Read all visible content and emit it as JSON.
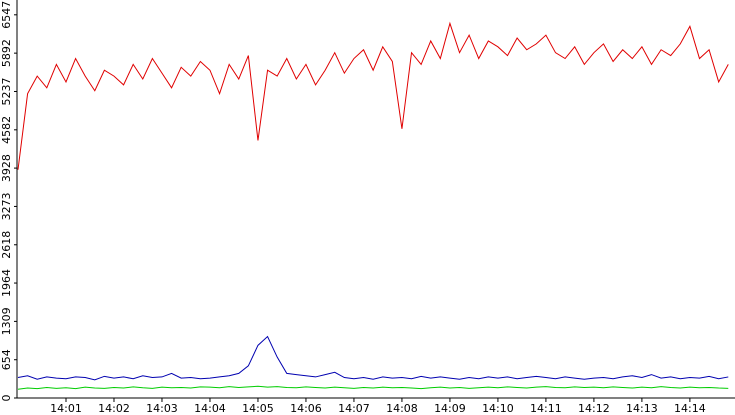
{
  "chart_data": {
    "type": "line",
    "x": [
      840,
      840.2,
      840.4,
      840.6,
      840.8,
      841,
      841.2,
      841.4,
      841.6,
      841.8,
      842,
      842.2,
      842.4,
      842.6,
      842.8,
      843,
      843.2,
      843.4,
      843.6,
      843.8,
      844,
      844.2,
      844.4,
      844.6,
      844.8,
      845,
      845.2,
      845.4,
      845.6,
      845.8,
      846,
      846.2,
      846.4,
      846.6,
      846.8,
      847,
      847.2,
      847.4,
      847.6,
      847.8,
      848,
      848.2,
      848.4,
      848.6,
      848.8,
      849,
      849.2,
      849.4,
      849.6,
      849.8,
      850,
      850.2,
      850.4,
      850.6,
      850.8,
      851,
      851.2,
      851.4,
      851.6,
      851.8,
      852,
      852.2,
      852.4,
      852.6,
      852.8,
      853,
      853.2,
      853.4,
      853.6,
      853.8,
      854,
      854.2,
      854.4,
      854.6,
      854.8
    ],
    "series": [
      {
        "color": "#e00000",
        "values": [
          3900,
          5200,
          5500,
          5300,
          5700,
          5400,
          5800,
          5500,
          5250,
          5600,
          5500,
          5350,
          5700,
          5450,
          5800,
          5550,
          5300,
          5650,
          5500,
          5750,
          5600,
          5200,
          5700,
          5450,
          5850,
          4400,
          5600,
          5500,
          5800,
          5450,
          5700,
          5350,
          5600,
          5900,
          5550,
          5800,
          5950,
          5600,
          6000,
          5750,
          4600,
          5900,
          5700,
          6100,
          5800,
          6400,
          5900,
          6200,
          5800,
          6100,
          6000,
          5850,
          6150,
          5950,
          6050,
          6200,
          5900,
          5800,
          6000,
          5700,
          5900,
          6050,
          5750,
          5950,
          5800,
          6000,
          5700,
          5950,
          5850,
          6050,
          6350,
          5800,
          5950,
          5400,
          5700
        ]
      },
      {
        "color": "#0000b0",
        "values": [
          350,
          380,
          320,
          360,
          340,
          330,
          360,
          350,
          310,
          370,
          340,
          360,
          330,
          380,
          350,
          360,
          420,
          340,
          350,
          330,
          340,
          360,
          380,
          420,
          550,
          900,
          1050,
          700,
          420,
          400,
          380,
          360,
          400,
          440,
          350,
          330,
          350,
          320,
          360,
          340,
          350,
          330,
          370,
          340,
          360,
          340,
          320,
          350,
          330,
          360,
          340,
          360,
          330,
          350,
          370,
          350,
          330,
          360,
          340,
          320,
          340,
          350,
          330,
          360,
          380,
          350,
          400,
          340,
          360,
          330,
          350,
          340,
          370,
          330,
          360
        ]
      },
      {
        "color": "#00cc00",
        "values": [
          150,
          170,
          160,
          180,
          165,
          175,
          160,
          185,
          170,
          165,
          180,
          170,
          190,
          175,
          165,
          185,
          175,
          180,
          170,
          190,
          185,
          175,
          195,
          180,
          190,
          200,
          185,
          195,
          180,
          175,
          190,
          180,
          170,
          185,
          175,
          165,
          180,
          170,
          185,
          175,
          180,
          170,
          160,
          175,
          185,
          170,
          180,
          165,
          175,
          185,
          175,
          190,
          180,
          170,
          185,
          195,
          180,
          175,
          190,
          180,
          185,
          175,
          190,
          180,
          170,
          185,
          175,
          195,
          180,
          170,
          185,
          175,
          180,
          170,
          165
        ]
      }
    ],
    "xlim": [
      840,
      854.94
    ],
    "xticks": [
      {
        "value": 841,
        "label": "14:01"
      },
      {
        "value": 842,
        "label": "14:02"
      },
      {
        "value": 843,
        "label": "14:03"
      },
      {
        "value": 844,
        "label": "14:04"
      },
      {
        "value": 845,
        "label": "14:05"
      },
      {
        "value": 846,
        "label": "14:06"
      },
      {
        "value": 847,
        "label": "14:07"
      },
      {
        "value": 848,
        "label": "14:08"
      },
      {
        "value": 849,
        "label": "14:09"
      },
      {
        "value": 850,
        "label": "14:10"
      },
      {
        "value": 851,
        "label": "14:11"
      },
      {
        "value": 852,
        "label": "14:12"
      },
      {
        "value": 853,
        "label": "14:13"
      },
      {
        "value": 854,
        "label": "14:14"
      }
    ],
    "ylim": [
      0,
      6800
    ],
    "yticks": [
      0,
      654,
      1309,
      1964,
      2618,
      3273,
      3928,
      4582,
      5237,
      5892,
      6547
    ]
  }
}
